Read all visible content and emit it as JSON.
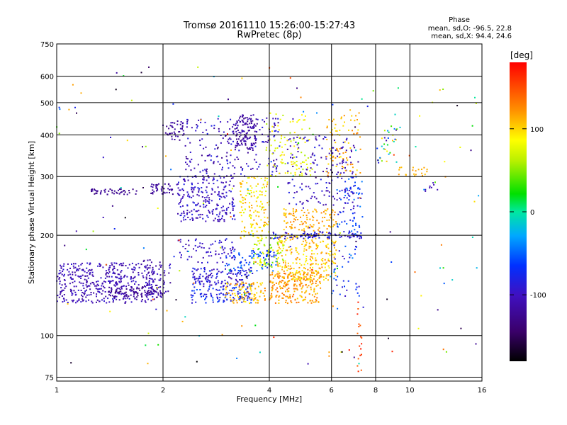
{
  "chart_data": {
    "type": "scatter",
    "title": "Tromsø 20161110 15:26:00-15:27:43",
    "subtitle": "RwPretec (8p)",
    "xlabel": "Frequency [MHz]",
    "ylabel": "Stationary phase Virtual Height [km]",
    "xscale": "log",
    "yscale": "log",
    "xlim": [
      1,
      16
    ],
    "ylim": [
      73,
      750
    ],
    "xticks": [
      1,
      2,
      4,
      6,
      8,
      10,
      16
    ],
    "yticks": [
      75,
      100,
      200,
      300,
      400,
      500,
      600,
      750
    ],
    "grid": true,
    "phase_info": {
      "title": "Phase",
      "line1": "mean, sd,O: -96.5, 22.8",
      "line2": "mean, sd,X:  94.4, 24.6"
    },
    "colorbar": {
      "label": "[deg]",
      "range": [
        -180,
        180
      ],
      "ticks": [
        100,
        0,
        -100
      ],
      "colormap": "rainbow"
    },
    "clusters": [
      {
        "x": [
          1.0,
          1.9
        ],
        "y": [
          125,
          165
        ],
        "phase": [
          -120,
          -90
        ],
        "n": 420
      },
      {
        "x": [
          1.4,
          2.0
        ],
        "y": [
          130,
          140
        ],
        "phase": [
          -135,
          -115
        ],
        "n": 80
      },
      {
        "x": [
          1.25,
          1.7
        ],
        "y": [
          265,
          275
        ],
        "phase": [
          -135,
          -115
        ],
        "n": 45
      },
      {
        "x": [
          1.85,
          2.15
        ],
        "y": [
          265,
          285
        ],
        "phase": [
          -130,
          -110
        ],
        "n": 40
      },
      {
        "x": [
          1.75,
          2.1
        ],
        "y": [
          130,
          170
        ],
        "phase": [
          -125,
          -95
        ],
        "n": 70
      },
      {
        "x": [
          2.0,
          2.3
        ],
        "y": [
          380,
          440
        ],
        "phase": [
          -130,
          -105
        ],
        "n": 40
      },
      {
        "x": [
          2.2,
          3.2
        ],
        "y": [
          220,
          300
        ],
        "phase": [
          -115,
          -80
        ],
        "n": 230
      },
      {
        "x": [
          2.3,
          4.3
        ],
        "y": [
          300,
          450
        ],
        "phase": [
          -125,
          -80
        ],
        "n": 200
      },
      {
        "x": [
          3.2,
          3.7
        ],
        "y": [
          360,
          460
        ],
        "phase": [
          -130,
          -100
        ],
        "n": 110
      },
      {
        "x": [
          2.4,
          3.6
        ],
        "y": [
          140,
          160
        ],
        "phase": [
          -110,
          -70
        ],
        "n": 140
      },
      {
        "x": [
          2.4,
          3.6
        ],
        "y": [
          125,
          140
        ],
        "phase": [
          -95,
          -55
        ],
        "n": 110
      },
      {
        "x": [
          2.2,
          3.2
        ],
        "y": [
          165,
          195
        ],
        "phase": [
          -115,
          -80
        ],
        "n": 70
      },
      {
        "x": [
          3.0,
          4.2
        ],
        "y": [
          155,
          180
        ],
        "phase": [
          -80,
          -40
        ],
        "n": 90
      },
      {
        "x": [
          3.3,
          4.0
        ],
        "y": [
          195,
          300
        ],
        "phase": [
          70,
          120
        ],
        "n": 140
      },
      {
        "x": [
          3.6,
          4.4
        ],
        "y": [
          160,
          200
        ],
        "phase": [
          40,
          95
        ],
        "n": 80
      },
      {
        "x": [
          3.0,
          3.9
        ],
        "y": [
          125,
          145
        ],
        "phase": [
          90,
          130
        ],
        "n": 90
      },
      {
        "x": [
          4.0,
          5.6
        ],
        "y": [
          125,
          155
        ],
        "phase": [
          100,
          140
        ],
        "n": 220
      },
      {
        "x": [
          4.2,
          6.2
        ],
        "y": [
          145,
          200
        ],
        "phase": [
          85,
          130
        ],
        "n": 250
      },
      {
        "x": [
          4.4,
          6.2
        ],
        "y": [
          200,
          240
        ],
        "phase": [
          100,
          130
        ],
        "n": 120
      },
      {
        "x": [
          4.5,
          7.0
        ],
        "y": [
          240,
          400
        ],
        "phase": [
          -120,
          -80
        ],
        "n": 170
      },
      {
        "x": [
          3.9,
          5.3
        ],
        "y": [
          300,
          470
        ],
        "phase": [
          55,
          100
        ],
        "n": 100
      },
      {
        "x": [
          5.8,
          7.3
        ],
        "y": [
          300,
          480
        ],
        "phase": [
          90,
          130
        ],
        "n": 80
      },
      {
        "x": [
          6.2,
          7.4
        ],
        "y": [
          200,
          300
        ],
        "phase": [
          -90,
          -40
        ],
        "n": 70
      },
      {
        "x": [
          4.0,
          7.3
        ],
        "y": [
          195,
          205
        ],
        "phase": [
          -110,
          -70
        ],
        "n": 90
      },
      {
        "x": [
          6.0,
          7.2
        ],
        "y": [
          130,
          190
        ],
        "phase": [
          -100,
          -40
        ],
        "n": 40
      },
      {
        "x": [
          7.1,
          7.3
        ],
        "y": [
          78,
          135
        ],
        "phase": [
          140,
          170
        ],
        "n": 18
      },
      {
        "x": [
          8.0,
          9.2
        ],
        "y": [
          330,
          420
        ],
        "phase": [
          -120,
          110
        ],
        "n": 30
      },
      {
        "x": [
          9.2,
          11.2
        ],
        "y": [
          300,
          320
        ],
        "phase": [
          105,
          120
        ],
        "n": 20
      },
      {
        "x": [
          10.5,
          12.0
        ],
        "y": [
          270,
          290
        ],
        "phase": [
          -110,
          -100
        ],
        "n": 8
      },
      {
        "x": [
          1.0,
          15.8
        ],
        "y": [
          80,
          650
        ],
        "phase": [
          -180,
          180
        ],
        "n": 180
      }
    ]
  }
}
